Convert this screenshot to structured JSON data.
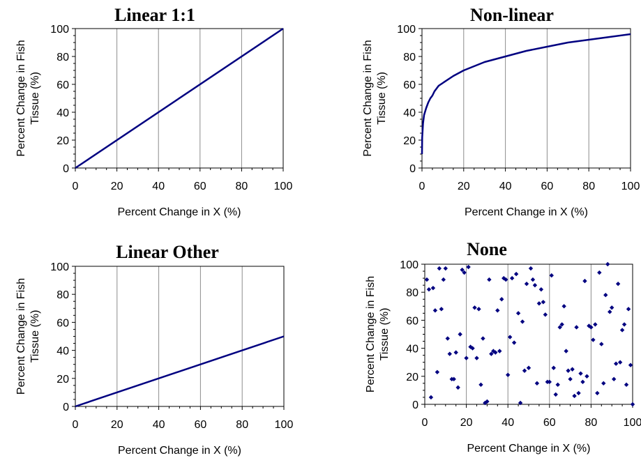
{
  "chart_data": [
    {
      "type": "line",
      "title": "Linear 1:1",
      "xlabel": "Percent Change in X (%)",
      "ylabel": [
        "Percent Change in Fish",
        "Tissue (%)"
      ],
      "xlim": [
        0,
        100
      ],
      "ylim": [
        0,
        100
      ],
      "xticks": [
        0,
        20,
        40,
        60,
        80,
        100
      ],
      "yticks": [
        0,
        20,
        40,
        60,
        80,
        100
      ],
      "grid": "vertical",
      "series": [
        {
          "x": [
            0,
            100
          ],
          "y": [
            0,
            100
          ]
        }
      ]
    },
    {
      "type": "line",
      "title": "Non-linear",
      "xlabel": "Percent Change in X (%)",
      "ylabel": [
        "Percent Change in Fish",
        "Tissue (%)"
      ],
      "xlim": [
        0,
        100
      ],
      "ylim": [
        0,
        100
      ],
      "xticks": [
        0,
        20,
        40,
        60,
        80,
        100
      ],
      "yticks": [
        0,
        20,
        40,
        60,
        80,
        100
      ],
      "grid": "vertical",
      "series": [
        {
          "x": [
            0,
            0.1,
            0.5,
            1,
            2,
            3,
            4,
            5,
            6,
            8,
            10,
            15,
            20,
            30,
            40,
            50,
            60,
            70,
            80,
            90,
            100
          ],
          "y": [
            10,
            22,
            32,
            38,
            43,
            47,
            50,
            52,
            55,
            59,
            61,
            66,
            70,
            76,
            80,
            84,
            87,
            90,
            92,
            94,
            96
          ]
        }
      ]
    },
    {
      "type": "line",
      "title": "Linear Other",
      "xlabel": "Percent Change in X (%)",
      "ylabel": [
        "Percent Change in Fish",
        "Tissue (%)"
      ],
      "xlim": [
        0,
        100
      ],
      "ylim": [
        0,
        100
      ],
      "xticks": [
        0,
        20,
        40,
        60,
        80,
        100
      ],
      "yticks": [
        0,
        20,
        40,
        60,
        80,
        100
      ],
      "grid": "vertical",
      "series": [
        {
          "x": [
            0,
            100
          ],
          "y": [
            0,
            50
          ]
        }
      ]
    },
    {
      "type": "scatter",
      "title": "None",
      "xlabel": "Percent Change in X (%)",
      "ylabel": [
        "Percent Change in Fish",
        "Tissue (%)"
      ],
      "xlim": [
        0,
        100
      ],
      "ylim": [
        0,
        100
      ],
      "xticks": [
        0,
        20,
        40,
        60,
        80,
        100
      ],
      "yticks": [
        0,
        20,
        40,
        60,
        80,
        100
      ],
      "grid": "vertical",
      "series": [
        {
          "x": [
            1,
            3,
            5,
            7,
            9,
            11,
            13,
            15,
            17,
            19,
            21,
            23,
            25,
            27,
            29,
            31,
            33,
            35,
            37,
            39,
            41,
            43,
            45,
            47,
            49,
            51,
            53,
            55,
            57,
            59,
            61,
            63,
            65,
            67,
            69,
            71,
            73,
            75,
            77,
            79,
            81,
            83,
            85,
            87,
            89,
            91,
            93,
            95,
            97,
            99,
            2,
            6,
            10,
            14,
            18,
            22,
            26,
            30,
            34,
            38,
            42,
            46,
            50,
            54,
            58,
            62,
            66,
            70,
            74,
            78,
            82,
            86,
            90,
            94,
            98,
            4,
            12,
            20,
            28,
            36,
            44,
            52,
            60,
            68,
            76,
            84,
            92,
            100,
            8,
            16,
            24,
            32,
            40,
            48,
            56,
            64,
            72,
            80,
            88,
            96
          ],
          "y": [
            89,
            5,
            67,
            97,
            89,
            47,
            18,
            37,
            50,
            94,
            98,
            40,
            33,
            14,
            1,
            89,
            38,
            67,
            75,
            89,
            48,
            44,
            65,
            59,
            86,
            97,
            85,
            72,
            73,
            16,
            92,
            7,
            55,
            70,
            24,
            25,
            55,
            22,
            88,
            56,
            46,
            8,
            43,
            78,
            66,
            18,
            86,
            53,
            14,
            28,
            82,
            23,
            97,
            18,
            96,
            41,
            68,
            2,
            37,
            90,
            90,
            1,
            26,
            15,
            64,
            26,
            57,
            18,
            8,
            20,
            57,
            15,
            69,
            30,
            68,
            83,
            36,
            33,
            47,
            38,
            93,
            89,
            16,
            38,
            16,
            94,
            29,
            0,
            68,
            12,
            69,
            36,
            21,
            24,
            82,
            14,
            6,
            55,
            100,
            57
          ]
        }
      ]
    }
  ]
}
